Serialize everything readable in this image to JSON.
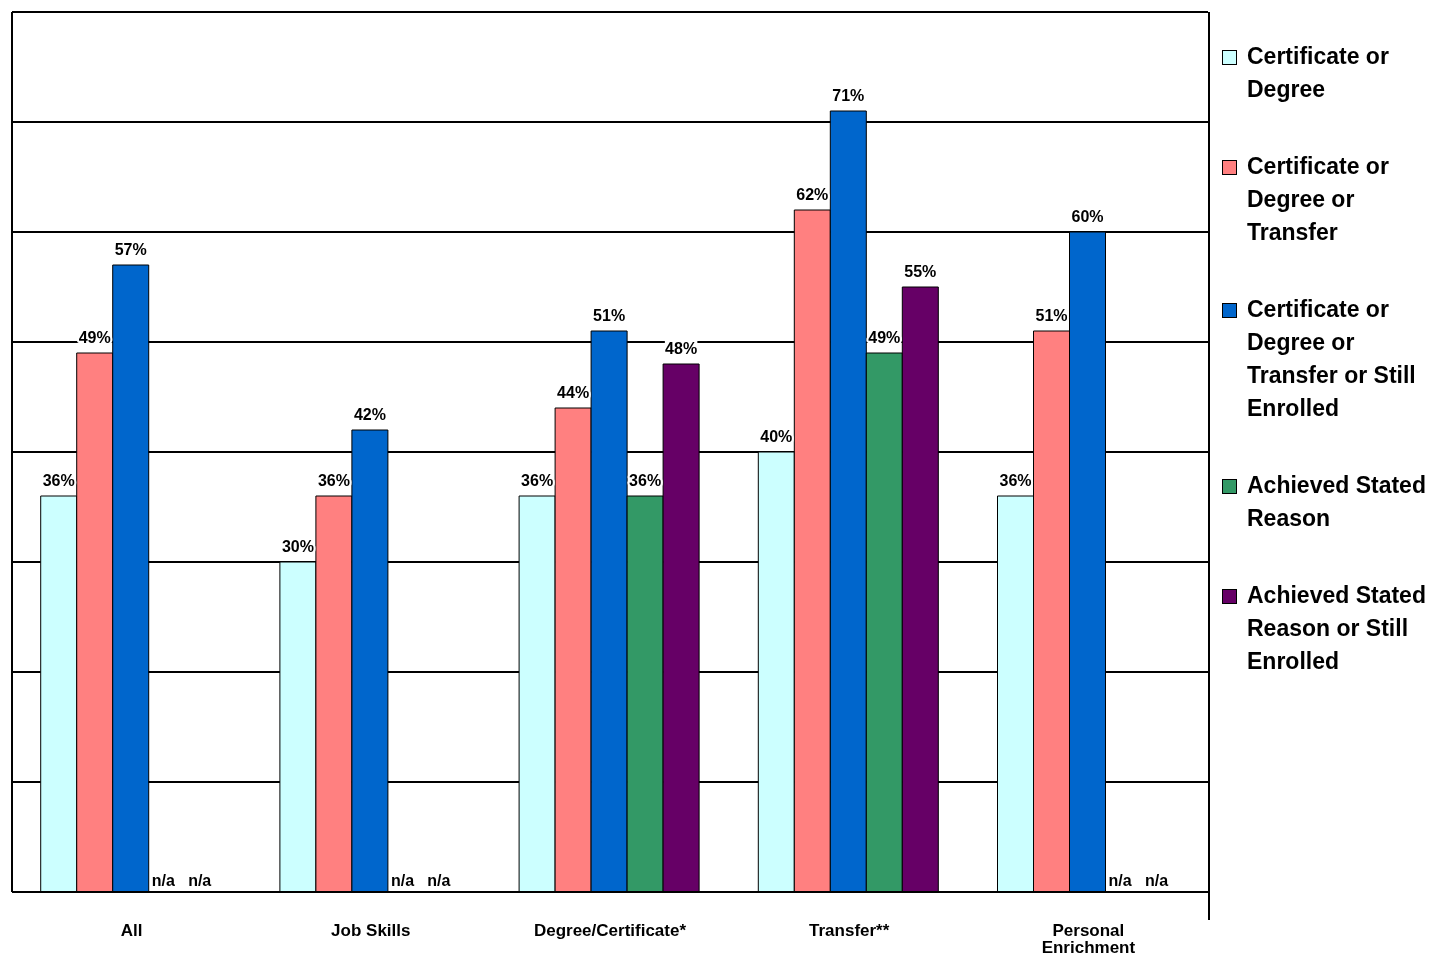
{
  "chart_data": {
    "type": "bar",
    "categories": [
      "All",
      "Job Skills",
      "Degree/Certificate*",
      "Transfer**",
      "Personal Enrichment"
    ],
    "series": [
      {
        "name": "Certificate or Degree",
        "color": "#ccffff",
        "values": [
          36,
          30,
          36,
          40,
          36
        ],
        "value_labels": [
          "36%",
          "30%",
          "36%",
          "40%",
          "36%"
        ]
      },
      {
        "name": "Certificate or Degree or Transfer",
        "color": "#ff8080",
        "values": [
          49,
          36,
          44,
          62,
          51
        ],
        "value_labels": [
          "49%",
          "36%",
          "44%",
          "62%",
          "51%"
        ]
      },
      {
        "name": "Certificate or Degree or Transfer or Still Enrolled",
        "color": "#0066cc",
        "values": [
          57,
          42,
          51,
          71,
          60
        ],
        "value_labels": [
          "57%",
          "42%",
          "51%",
          "71%",
          "60%"
        ]
      },
      {
        "name": "Achieved Stated Reason",
        "color": "#339966",
        "values": [
          null,
          null,
          36,
          49,
          null
        ],
        "value_labels": [
          "n/a",
          "n/a",
          "36%",
          "49%",
          "n/a"
        ]
      },
      {
        "name": "Achieved Stated Reason or Still Enrolled",
        "color": "#660066",
        "values": [
          null,
          null,
          48,
          55,
          null
        ],
        "value_labels": [
          "n/a",
          "n/a",
          "48%",
          "55%",
          "n/a"
        ]
      }
    ],
    "ylim": [
      0,
      80
    ],
    "yticks": [
      {
        "value": 0,
        "label": null
      },
      {
        "value": 10,
        "label": null
      },
      {
        "value": 20,
        "label": null
      },
      {
        "value": 30,
        "label": null
      },
      {
        "value": 40,
        "label": null
      },
      {
        "value": 50,
        "label": null
      },
      {
        "value": 60,
        "label": null
      },
      {
        "value": 70,
        "label": null
      },
      {
        "value": 80,
        "label": null
      }
    ],
    "tick_labels": "x",
    "grid": "y",
    "legend": "right"
  }
}
